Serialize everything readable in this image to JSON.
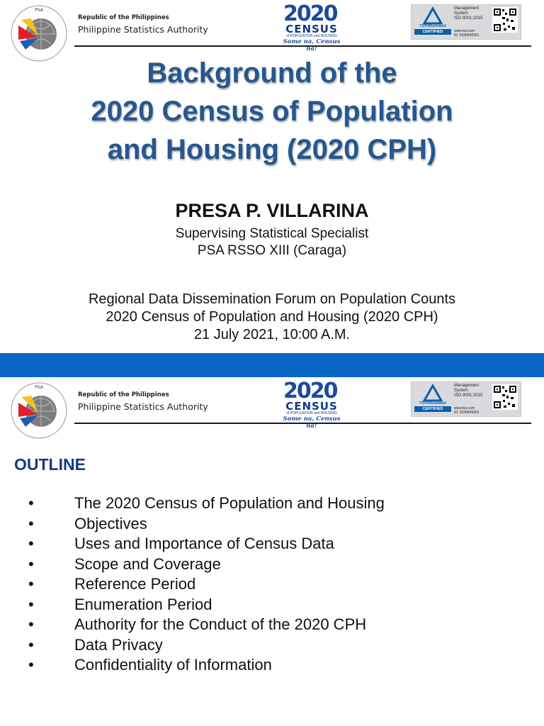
{
  "header": {
    "republic": "Republic of the Philippines",
    "agency": "Philippine Statistics Authority",
    "census_logo": {
      "year": "2020",
      "word": "CENSUS",
      "subtitle": "of POPULATION and HOUSING",
      "tagline": "Some na, Census na!"
    },
    "cert": {
      "brand": "TÜVRheinland",
      "badge": "CERTIFIED",
      "management": [
        "Management",
        "System",
        "ISO 9001:2015"
      ],
      "site": "www.tuv.com",
      "id": "ID: 9108640991"
    }
  },
  "slide1": {
    "title_lines": [
      "Background of the",
      "2020 Census of Population",
      "and Housing (2020 CPH)"
    ],
    "presenter": "PRESA P. VILLARINA",
    "position_lines": [
      "Supervising Statistical Specialist",
      "PSA RSSO XIII (Caraga)"
    ],
    "forum_lines": [
      "Regional Data Dissemination Forum on Population Counts",
      "2020 Census of Population and Housing (2020 CPH)",
      "21 July 2021, 10:00 A.M."
    ]
  },
  "slide2": {
    "heading": "OUTLINE",
    "bullet": "•",
    "items": [
      "The 2020 Census of Population and Housing",
      "Objectives",
      "Uses and Importance of Census Data",
      "Scope and Coverage",
      "Reference Period",
      "Enumeration Period",
      "Authority for the Conduct of the 2020 CPH",
      "Data Privacy",
      "Confidentiality of Information"
    ]
  },
  "colors": {
    "title_blue": "#25578f",
    "outline_blue": "#123a84",
    "band_blue": "#0866c6"
  }
}
